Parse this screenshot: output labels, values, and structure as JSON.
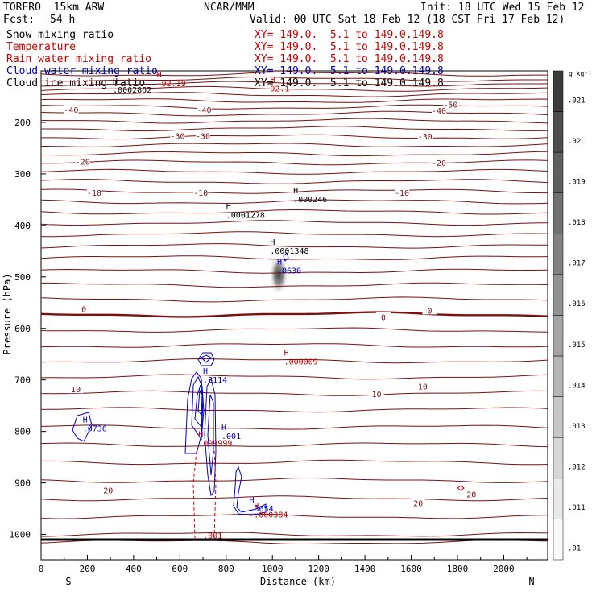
{
  "header": {
    "model": "TORERO  15km ARW",
    "center": "NCAR/MMM",
    "init": "Init: 18 UTC Wed 15 Feb 12",
    "fcst_label": "Fcst:",
    "fcst_value": "54 h",
    "valid": "Valid: 00 UTC Sat 18 Feb 12 (18 CST Fri 17 Feb 12)"
  },
  "fields": [
    {
      "name": "Snow mixing ratio",
      "xy": "XY= 149.0.  5.1 to 149.0.149.8",
      "color": "#000000"
    },
    {
      "name": "Temperature",
      "xy": "XY= 149.0.  5.1 to 149.0.149.8",
      "color": "#cc0000"
    },
    {
      "name": "Rain water mixing ratio",
      "xy": "XY= 149.0.  5.1 to 149.0.149.8",
      "color": "#cc0000"
    },
    {
      "name": "Cloud water mixing ratio",
      "xy": "XY= 149.0.  5.1 to 149.0.149.8",
      "color": "#0000cc"
    },
    {
      "name": "Cloud ice mixing ratio",
      "xy": "XY= 149.0.  5.1 to 149.0.149.8",
      "color": "#000000"
    }
  ],
  "colors": {
    "isotherm": "#7a1010",
    "freezing": "#7a1010",
    "rain": "#dd0000",
    "cloud_water": "#0000cc",
    "text_red": "#cc0000",
    "text_blue": "#0000cc"
  },
  "chart_data": {
    "type": "vertical cross-section",
    "xlabel": "Distance (km)",
    "ylabel": "Pressure (hPa)",
    "xlim": [
      0,
      2190
    ],
    "ylim": [
      1050,
      100
    ],
    "x_ticks": [
      0,
      200,
      400,
      600,
      800,
      1000,
      1200,
      1400,
      1600,
      1800,
      2000
    ],
    "y_ticks": [
      200,
      300,
      400,
      500,
      600,
      700,
      800,
      900,
      1000
    ],
    "left_end": "S",
    "right_end": "N",
    "colorbar": {
      "unit": "g kg⁻¹",
      "labels": [
        ".021",
        ".02",
        ".019",
        ".018",
        ".017",
        ".016",
        ".015",
        ".014",
        ".013",
        ".012",
        ".011",
        ".01"
      ]
    },
    "isotherm_labels": [
      {
        "text": "-50",
        "x": 1770,
        "p": 165
      },
      {
        "text": "-40",
        "x": 130,
        "p": 175
      },
      {
        "text": "-40",
        "x": 705,
        "p": 175
      },
      {
        "text": "-40",
        "x": 1720,
        "p": 177
      },
      {
        "text": "-30",
        "x": 590,
        "p": 226
      },
      {
        "text": "-30",
        "x": 700,
        "p": 226
      },
      {
        "text": "-30",
        "x": 1660,
        "p": 227
      },
      {
        "text": "-20",
        "x": 180,
        "p": 276
      },
      {
        "text": "-20",
        "x": 1720,
        "p": 278
      },
      {
        "text": "-10",
        "x": 230,
        "p": 336
      },
      {
        "text": "-10",
        "x": 690,
        "p": 336
      },
      {
        "text": "-10",
        "x": 1560,
        "p": 336
      },
      {
        "text": "0",
        "x": 185,
        "p": 562
      },
      {
        "text": "0",
        "x": 1480,
        "p": 578
      },
      {
        "text": "0",
        "x": 1680,
        "p": 565
      },
      {
        "text": "10",
        "x": 150,
        "p": 718
      },
      {
        "text": "10",
        "x": 1450,
        "p": 727
      },
      {
        "text": "10",
        "x": 1650,
        "p": 712
      },
      {
        "text": "20",
        "x": 290,
        "p": 914
      },
      {
        "text": "20",
        "x": 1630,
        "p": 939
      },
      {
        "text": "20",
        "x": 1860,
        "p": 922
      }
    ],
    "extrema": [
      {
        "mark": "H",
        "value": ".0002862",
        "x": 310,
        "p": 142,
        "color": "black"
      },
      {
        "mark": "H",
        "value": "-92.19",
        "x": 500,
        "p": 130,
        "color": "red"
      },
      {
        "mark": "H",
        "value": "92.1",
        "x": 990,
        "p": 140,
        "color": "red"
      },
      {
        "mark": "H",
        "value": ".0001278",
        "x": 800,
        "p": 385,
        "color": "black"
      },
      {
        "mark": "H",
        "value": ".000246",
        "x": 1090,
        "p": 355,
        "color": "black"
      },
      {
        "mark": "H",
        "value": ".0001348",
        "x": 990,
        "p": 455,
        "color": "black"
      },
      {
        "mark": "H",
        "value": ".0630",
        "x": 1020,
        "p": 493,
        "color": "blue"
      },
      {
        "mark": "H",
        "value": ".000009",
        "x": 1050,
        "p": 670,
        "color": "red"
      },
      {
        "mark": "H",
        "value": ".8114",
        "x": 700,
        "p": 705,
        "color": "blue"
      },
      {
        "mark": "H",
        "value": ".0736",
        "x": 180,
        "p": 800,
        "color": "blue"
      },
      {
        "mark": "H",
        "value": ".001",
        "x": 780,
        "p": 815,
        "color": "blue"
      },
      {
        "mark": "H",
        "value": ".099999",
        "x": 680,
        "p": 828,
        "color": "red"
      },
      {
        "mark": "H",
        "value": ".3654",
        "x": 900,
        "p": 955,
        "color": "blue"
      },
      {
        "mark": "H",
        "value": ".000384",
        "x": 920,
        "p": 967,
        "color": "red"
      },
      {
        "mark": "",
        "value": ".001",
        "x": 700,
        "p": 1008,
        "color": "red"
      }
    ]
  }
}
